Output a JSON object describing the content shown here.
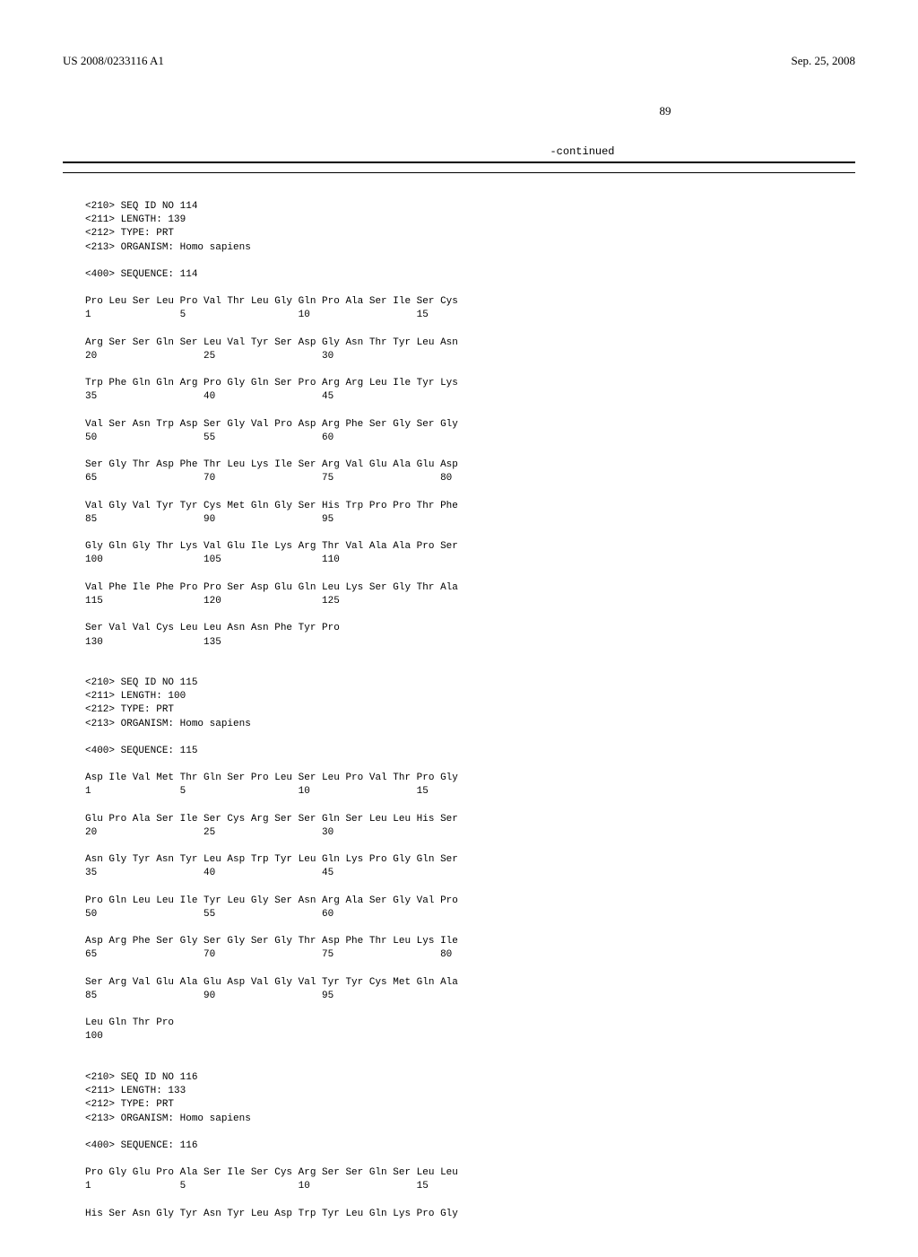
{
  "header": {
    "pub_number": "US 2008/0233116 A1",
    "pub_date": "Sep. 25, 2008"
  },
  "page_number": "89",
  "continued_label": "-continued",
  "sequences": [
    {
      "meta": [
        "<210> SEQ ID NO 114",
        "<211> LENGTH: 139",
        "<212> TYPE: PRT",
        "<213> ORGANISM: Homo sapiens"
      ],
      "seq_label": "<400> SEQUENCE: 114",
      "rows": [
        {
          "residues": "Pro Leu Ser Leu Pro Val Thr Leu Gly Gln Pro Ala Ser Ile Ser Cys",
          "nums": "1               5                   10                  15"
        },
        {
          "residues": "Arg Ser Ser Gln Ser Leu Val Tyr Ser Asp Gly Asn Thr Tyr Leu Asn",
          "nums": "20                  25                  30"
        },
        {
          "residues": "Trp Phe Gln Gln Arg Pro Gly Gln Ser Pro Arg Arg Leu Ile Tyr Lys",
          "nums": "35                  40                  45"
        },
        {
          "residues": "Val Ser Asn Trp Asp Ser Gly Val Pro Asp Arg Phe Ser Gly Ser Gly",
          "nums": "50                  55                  60"
        },
        {
          "residues": "Ser Gly Thr Asp Phe Thr Leu Lys Ile Ser Arg Val Glu Ala Glu Asp",
          "nums": "65                  70                  75                  80"
        },
        {
          "residues": "Val Gly Val Tyr Tyr Cys Met Gln Gly Ser His Trp Pro Pro Thr Phe",
          "nums": "85                  90                  95"
        },
        {
          "residues": "Gly Gln Gly Thr Lys Val Glu Ile Lys Arg Thr Val Ala Ala Pro Ser",
          "nums": "100                 105                 110"
        },
        {
          "residues": "Val Phe Ile Phe Pro Pro Ser Asp Glu Gln Leu Lys Ser Gly Thr Ala",
          "nums": "115                 120                 125"
        },
        {
          "residues": "Ser Val Val Cys Leu Leu Asn Asn Phe Tyr Pro",
          "nums": "130                 135"
        }
      ]
    },
    {
      "meta": [
        "<210> SEQ ID NO 115",
        "<211> LENGTH: 100",
        "<212> TYPE: PRT",
        "<213> ORGANISM: Homo sapiens"
      ],
      "seq_label": "<400> SEQUENCE: 115",
      "rows": [
        {
          "residues": "Asp Ile Val Met Thr Gln Ser Pro Leu Ser Leu Pro Val Thr Pro Gly",
          "nums": "1               5                   10                  15"
        },
        {
          "residues": "Glu Pro Ala Ser Ile Ser Cys Arg Ser Ser Gln Ser Leu Leu His Ser",
          "nums": "20                  25                  30"
        },
        {
          "residues": "Asn Gly Tyr Asn Tyr Leu Asp Trp Tyr Leu Gln Lys Pro Gly Gln Ser",
          "nums": "35                  40                  45"
        },
        {
          "residues": "Pro Gln Leu Leu Ile Tyr Leu Gly Ser Asn Arg Ala Ser Gly Val Pro",
          "nums": "50                  55                  60"
        },
        {
          "residues": "Asp Arg Phe Ser Gly Ser Gly Ser Gly Thr Asp Phe Thr Leu Lys Ile",
          "nums": "65                  70                  75                  80"
        },
        {
          "residues": "Ser Arg Val Glu Ala Glu Asp Val Gly Val Tyr Tyr Cys Met Gln Ala",
          "nums": "85                  90                  95"
        },
        {
          "residues": "Leu Gln Thr Pro",
          "nums": "100"
        }
      ]
    },
    {
      "meta": [
        "<210> SEQ ID NO 116",
        "<211> LENGTH: 133",
        "<212> TYPE: PRT",
        "<213> ORGANISM: Homo sapiens"
      ],
      "seq_label": "<400> SEQUENCE: 116",
      "rows": [
        {
          "residues": "Pro Gly Glu Pro Ala Ser Ile Ser Cys Arg Ser Ser Gln Ser Leu Leu",
          "nums": "1               5                   10                  15"
        },
        {
          "residues": "His Ser Asn Gly Tyr Asn Tyr Leu Asp Trp Tyr Leu Gln Lys Pro Gly",
          "nums": ""
        }
      ]
    }
  ]
}
